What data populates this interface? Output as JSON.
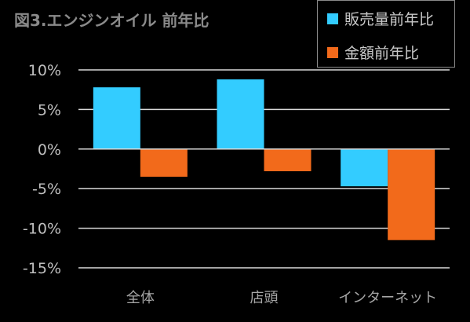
{
  "chart_data": {
    "type": "bar",
    "title": "図3.エンジンオイル 前年比",
    "categories": [
      "全体",
      "店頭",
      "インターネット"
    ],
    "series": [
      {
        "name": "販売量前年比",
        "color": "#33ccff",
        "values": [
          7.8,
          8.8,
          -4.7
        ]
      },
      {
        "name": "金額前年比",
        "color": "#f26a1b",
        "values": [
          -3.5,
          -2.8,
          -11.5
        ]
      }
    ],
    "ylim": [
      -15,
      10
    ],
    "yticks": [
      10,
      5,
      0,
      -5,
      -10,
      -15
    ],
    "ytick_labels": [
      "10%",
      "5%",
      "0%",
      "-5%",
      "-10%",
      "-15%"
    ],
    "grid": true,
    "legend_position": "top-right"
  }
}
